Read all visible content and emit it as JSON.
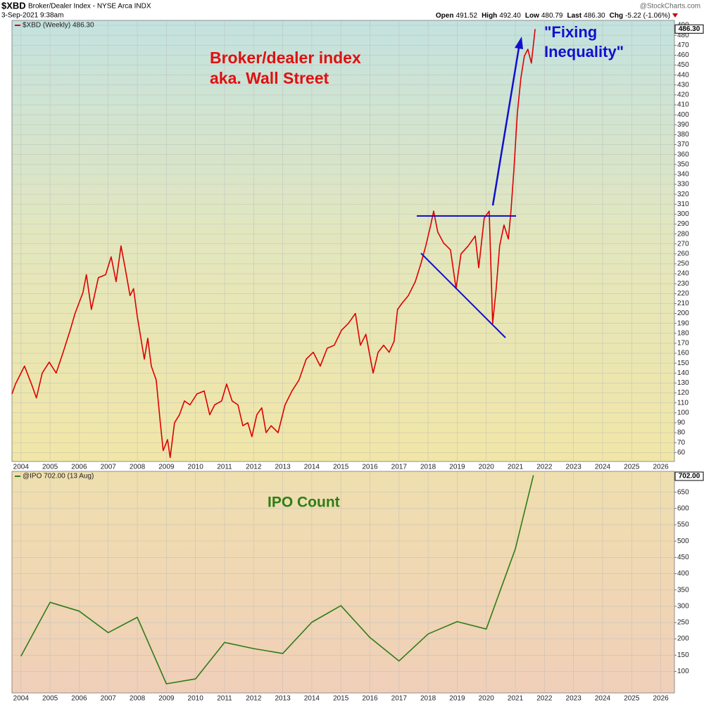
{
  "header": {
    "symbol": "$XBD",
    "name": "Broker/Dealer Index - NYSE Arca INDX",
    "timestamp": "3-Sep-2021 9:38am",
    "source": "@StockCharts.com",
    "quote": [
      {
        "label": "Open",
        "value": "491.52"
      },
      {
        "label": "High",
        "value": "492.40"
      },
      {
        "label": "Low",
        "value": "480.79"
      },
      {
        "label": "Last",
        "value": "486.30"
      },
      {
        "label": "Chg",
        "value": "-5.22 (-1.06%)"
      }
    ]
  },
  "chart_data": [
    {
      "type": "line",
      "x": [
        2003.69,
        2003.81,
        2004.12,
        2004.36,
        2004.53,
        2004.73,
        2004.97,
        2005.21,
        2005.45,
        2005.69,
        2005.86,
        2006.13,
        2006.25,
        2006.42,
        2006.66,
        2006.91,
        2007.1,
        2007.27,
        2007.44,
        2007.58,
        2007.75,
        2007.87,
        2008.0,
        2008.24,
        2008.36,
        2008.48,
        2008.65,
        2008.79,
        2008.89,
        2009.04,
        2009.13,
        2009.28,
        2009.45,
        2009.62,
        2009.81,
        2010.05,
        2010.3,
        2010.49,
        2010.66,
        2010.9,
        2011.07,
        2011.26,
        2011.46,
        2011.63,
        2011.8,
        2011.94,
        2012.11,
        2012.28,
        2012.43,
        2012.6,
        2012.84,
        2013.08,
        2013.32,
        2013.56,
        2013.81,
        2014.05,
        2014.29,
        2014.53,
        2014.77,
        2015.02,
        2015.26,
        2015.5,
        2015.67,
        2015.86,
        2016.11,
        2016.28,
        2016.47,
        2016.66,
        2016.83,
        2016.95,
        2017.12,
        2017.32,
        2017.56,
        2017.75,
        2017.92,
        2018.09,
        2018.19,
        2018.33,
        2018.53,
        2018.77,
        2018.96,
        2019.13,
        2019.38,
        2019.62,
        2019.74,
        2019.93,
        2020.1,
        2020.22,
        2020.34,
        2020.46,
        2020.61,
        2020.76,
        2020.85,
        2020.95,
        2021.07,
        2021.19,
        2021.31,
        2021.43,
        2021.55,
        2021.68
      ],
      "series": [
        {
          "name": "$XBD (Weekly) 486.30",
          "color": "#dd0000",
          "values": [
            119,
            129,
            147,
            129,
            115,
            140,
            151,
            140,
            161,
            183,
            200,
            221,
            239,
            204,
            236,
            239,
            257,
            232,
            268,
            246,
            218,
            225,
            197,
            154,
            175,
            147,
            133,
            90,
            62,
            73,
            55,
            90,
            98,
            112,
            108,
            119,
            122,
            98,
            108,
            112,
            129,
            112,
            108,
            87,
            90,
            76,
            98,
            105,
            80,
            87,
            80,
            108,
            122,
            133,
            154,
            161,
            147,
            165,
            168,
            183,
            190,
            200,
            168,
            179,
            140,
            161,
            168,
            161,
            172,
            204,
            211,
            218,
            232,
            250,
            268,
            289,
            303,
            282,
            271,
            264,
            225,
            260,
            268,
            278,
            246,
            296,
            303,
            190,
            225,
            268,
            289,
            275,
            303,
            345,
            402,
            437,
            459,
            466,
            452,
            486.3
          ]
        }
      ],
      "last_label": "486.30",
      "xlim": [
        2003.69,
        2026.47
      ],
      "xticks": [
        2004,
        2005,
        2006,
        2007,
        2008,
        2009,
        2010,
        2011,
        2012,
        2013,
        2014,
        2015,
        2016,
        2017,
        2018,
        2019,
        2020,
        2021,
        2022,
        2023,
        2024,
        2025,
        2026
      ],
      "ylim": [
        51,
        495
      ],
      "yticks": [
        60,
        70,
        80,
        90,
        100,
        110,
        120,
        130,
        140,
        150,
        160,
        170,
        180,
        190,
        200,
        210,
        220,
        230,
        240,
        250,
        260,
        270,
        280,
        290,
        300,
        310,
        320,
        330,
        340,
        350,
        360,
        370,
        380,
        390,
        400,
        410,
        420,
        430,
        440,
        450,
        460,
        470,
        480,
        490
      ],
      "grid": true,
      "annotations": [
        [
          "Broker/dealer index",
          "aka. Wall Street"
        ],
        [
          "\"Fixing",
          "Inequality\""
        ]
      ]
    },
    {
      "type": "line",
      "x": [
        2004,
        2005,
        2006,
        2007,
        2008,
        2009,
        2010,
        2011,
        2012,
        2013,
        2014,
        2015,
        2016,
        2017,
        2018,
        2019,
        2020,
        2021,
        2021.62
      ],
      "series": [
        {
          "name": "@IPO 702.00 (13 Aug)",
          "color": "#2e7d18",
          "values": [
            147,
            312,
            285,
            219,
            266,
            62,
            77,
            189,
            170,
            155,
            251,
            302,
            204,
            132,
            215,
            253,
            230,
            476,
            702
          ]
        }
      ],
      "last_label": "702.00",
      "xlim": [
        2003.69,
        2026.47
      ],
      "xticks": [
        2004,
        2005,
        2006,
        2007,
        2008,
        2009,
        2010,
        2011,
        2012,
        2013,
        2014,
        2015,
        2016,
        2017,
        2018,
        2019,
        2020,
        2021,
        2022,
        2023,
        2024,
        2025,
        2026
      ],
      "ylim": [
        34,
        714
      ],
      "yticks": [
        100,
        150,
        200,
        250,
        300,
        350,
        400,
        450,
        500,
        550,
        600,
        650
      ],
      "grid": true,
      "annotations": [
        "IPO Count"
      ]
    }
  ]
}
